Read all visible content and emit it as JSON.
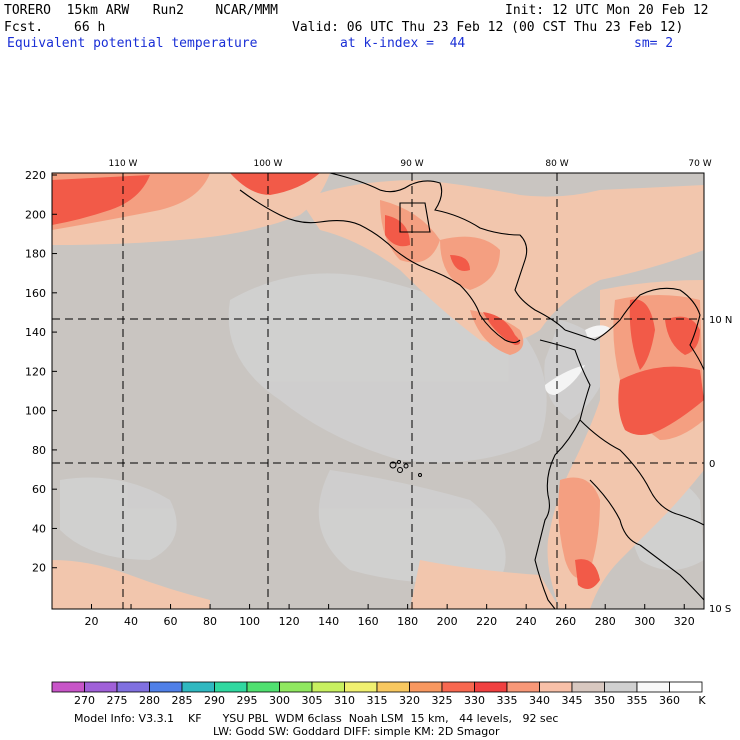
{
  "header": {
    "model": "TORERO  15km ARW   Run2    NCAR/MMM",
    "init": "Init: 12 UTC Mon 20 Feb 12",
    "fcst_label": "Fcst.",
    "fcst_value": "66 h",
    "valid": "Valid: 06 UTC Thu 23 Feb 12 (00 CST Thu 23 Feb 12)",
    "field": "Equivalent potential temperature",
    "level": "at k-index =  44",
    "smoothing": "sm= 2"
  },
  "map": {
    "top_lon_labels": [
      "110 W",
      "100 W",
      "90 W",
      "80 W",
      "70 W"
    ],
    "right_lat_labels": [
      "10 N",
      "0",
      "10 S"
    ],
    "left_grid_ticks": [
      "220",
      "200",
      "180",
      "160",
      "140",
      "120",
      "100",
      "80",
      "60",
      "40",
      "20"
    ],
    "bottom_grid_ticks": [
      "20",
      "40",
      "60",
      "80",
      "100",
      "120",
      "140",
      "160",
      "180",
      "200",
      "220",
      "240",
      "260",
      "280",
      "300",
      "320"
    ],
    "field_colors": {
      "base_gray": "#c8c4c0",
      "light_gray": "#cfcfcf",
      "peach": "#f3c8b0",
      "salmon": "#f4a082",
      "red": "#f25a48",
      "land_lines": "#000000",
      "grid_lines": "#000000"
    }
  },
  "colorbar": {
    "labels": [
      "270",
      "275",
      "280",
      "285",
      "290",
      "295",
      "300",
      "305",
      "310",
      "315",
      "320",
      "325",
      "330",
      "335",
      "340",
      "345",
      "350",
      "355",
      "360"
    ],
    "unit": "K",
    "colors": [
      "#c855c8",
      "#a060d8",
      "#8070e0",
      "#5080e8",
      "#30b8c0",
      "#30d8a0",
      "#50e070",
      "#90e860",
      "#c8f060",
      "#f0f070",
      "#f8c860",
      "#f89860",
      "#f86850",
      "#f04040",
      "#f89878",
      "#f8c0a8",
      "#d8c8c0",
      "#d0d0d0",
      "#f8f8f8",
      "#ffffff"
    ]
  },
  "footer": {
    "line1": "Model Info: V3.3.1    KF      YSU PBL  WDM 6class  Noah LSM  15 km,   44 levels,   92 sec",
    "line2": "LW: Godd SW: Goddard DIFF: simple KM: 2D Smagor"
  }
}
